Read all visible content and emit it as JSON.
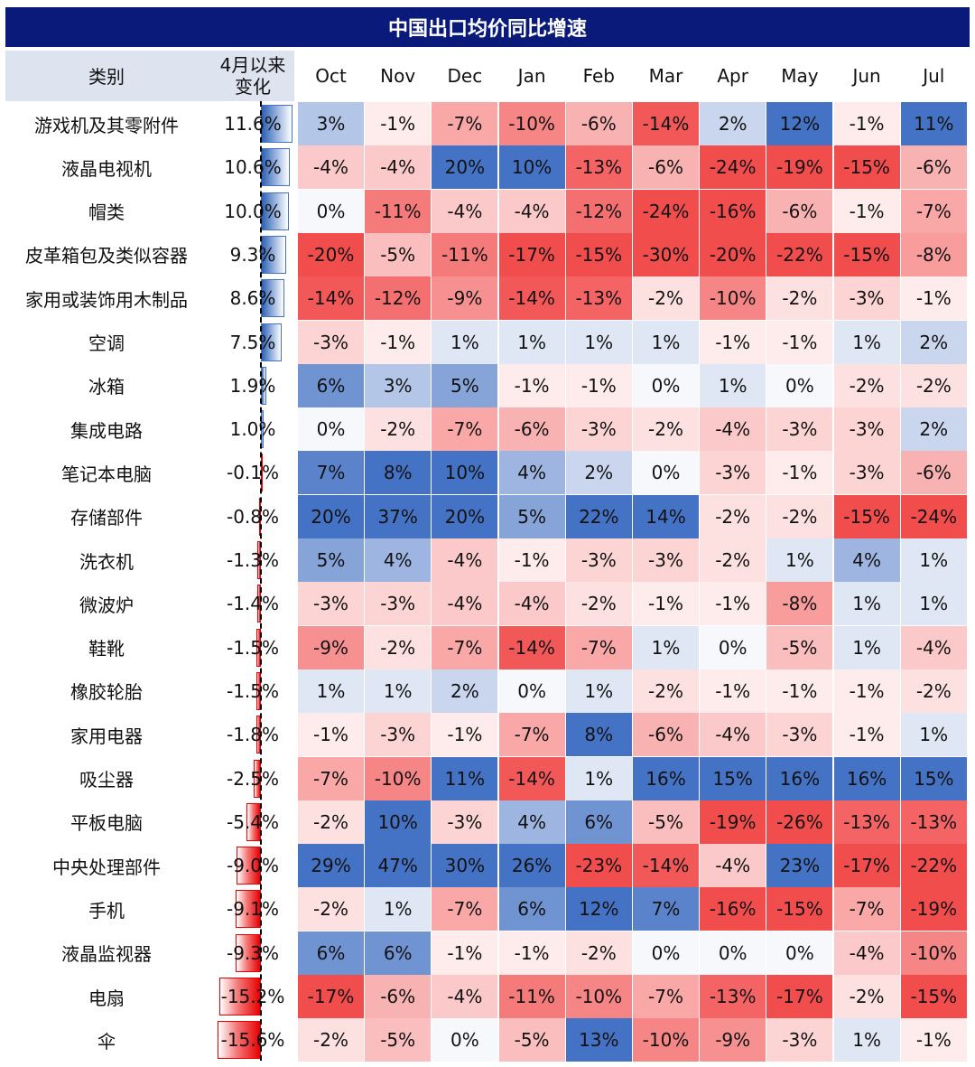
{
  "title": "中国出口均价同比增速",
  "headers": {
    "category": "类别",
    "change_line1": "4月以来",
    "change_line2": "变化",
    "months": [
      "Oct",
      "Nov",
      "Dec",
      "Jan",
      "Feb",
      "Mar",
      "Apr",
      "May",
      "Jun",
      "Jul"
    ]
  },
  "chart_data": {
    "type": "heatmap",
    "title": "中国出口均价同比增速",
    "columns": [
      "Oct",
      "Nov",
      "Dec",
      "Jan",
      "Feb",
      "Mar",
      "Apr",
      "May",
      "Jun",
      "Jul"
    ],
    "colors": {
      "positive": "#4472c4",
      "negative": "#f24d4d",
      "title_bg": "#0a1a7a",
      "header_bg": "#dde3ef"
    },
    "rows": [
      {
        "category": "游戏机及其零附件",
        "change_label": "11.6%",
        "change": 11.6,
        "values": [
          3,
          -1,
          -7,
          -10,
          -6,
          -14,
          2,
          12,
          -1,
          11
        ]
      },
      {
        "category": "液晶电视机",
        "change_label": "10.6%",
        "change": 10.6,
        "values": [
          -4,
          -4,
          20,
          10,
          -13,
          -6,
          -24,
          -19,
          -15,
          -6
        ]
      },
      {
        "category": "帽类",
        "change_label": "10.0%",
        "change": 10.0,
        "values": [
          0,
          -11,
          -4,
          -4,
          -12,
          -24,
          -16,
          -6,
          -1,
          -7
        ]
      },
      {
        "category": "皮革箱包及类似容器",
        "change_label": "9.3%",
        "change": 9.3,
        "values": [
          -20,
          -5,
          -11,
          -17,
          -15,
          -30,
          -20,
          -22,
          -15,
          -8
        ]
      },
      {
        "category": "家用或装饰用木制品",
        "change_label": "8.6%",
        "change": 8.6,
        "values": [
          -14,
          -12,
          -9,
          -14,
          -13,
          -2,
          -10,
          -2,
          -3,
          -1
        ]
      },
      {
        "category": "空调",
        "change_label": "7.5%",
        "change": 7.5,
        "values": [
          -3,
          -1,
          1,
          1,
          1,
          1,
          -1,
          -1,
          1,
          2
        ]
      },
      {
        "category": "冰箱",
        "change_label": "1.9%",
        "change": 1.9,
        "values": [
          6,
          3,
          5,
          -1,
          -1,
          0,
          1,
          0,
          -2,
          -2
        ]
      },
      {
        "category": "集成电路",
        "change_label": "1.0%",
        "change": 1.0,
        "values": [
          0,
          -2,
          -7,
          -6,
          -3,
          -2,
          -4,
          -3,
          -3,
          2
        ]
      },
      {
        "category": "笔记本电脑",
        "change_label": "-0.1%",
        "change": -0.1,
        "values": [
          7,
          8,
          10,
          4,
          2,
          0,
          -3,
          -1,
          -3,
          -6
        ]
      },
      {
        "category": "存储部件",
        "change_label": "-0.8%",
        "change": -0.8,
        "values": [
          20,
          37,
          20,
          5,
          22,
          14,
          -2,
          -2,
          -15,
          -24
        ]
      },
      {
        "category": "洗衣机",
        "change_label": "-1.3%",
        "change": -1.3,
        "values": [
          5,
          4,
          -4,
          -1,
          -3,
          -3,
          -2,
          1,
          4,
          1
        ]
      },
      {
        "category": "微波炉",
        "change_label": "-1.4%",
        "change": -1.4,
        "values": [
          -3,
          -3,
          -4,
          -4,
          -2,
          -1,
          -1,
          -8,
          1,
          1
        ]
      },
      {
        "category": "鞋靴",
        "change_label": "-1.5%",
        "change": -1.5,
        "values": [
          -9,
          -2,
          -7,
          -14,
          -7,
          1,
          0,
          -5,
          1,
          -4
        ]
      },
      {
        "category": "橡胶轮胎",
        "change_label": "-1.5%",
        "change": -1.5,
        "values": [
          1,
          1,
          2,
          0,
          1,
          -2,
          -1,
          -1,
          -1,
          -2
        ]
      },
      {
        "category": "家用电器",
        "change_label": "-1.8%",
        "change": -1.8,
        "values": [
          -1,
          -3,
          -1,
          -7,
          8,
          -6,
          -4,
          -3,
          -1,
          1
        ]
      },
      {
        "category": "吸尘器",
        "change_label": "-2.5%",
        "change": -2.5,
        "values": [
          -7,
          -10,
          11,
          -14,
          1,
          16,
          15,
          16,
          16,
          15
        ]
      },
      {
        "category": "平板电脑",
        "change_label": "-5.4%",
        "change": -5.4,
        "values": [
          -2,
          10,
          -3,
          4,
          6,
          -5,
          -19,
          -26,
          -13,
          -13
        ]
      },
      {
        "category": "中央处理部件",
        "change_label": "-9.0%",
        "change": -9.0,
        "values": [
          29,
          47,
          30,
          26,
          -23,
          -14,
          -4,
          23,
          -17,
          -22
        ]
      },
      {
        "category": "手机",
        "change_label": "-9.1%",
        "change": -9.1,
        "values": [
          -2,
          1,
          -7,
          6,
          12,
          7,
          -16,
          -15,
          -7,
          -19
        ]
      },
      {
        "category": "液晶监视器",
        "change_label": "-9.3%",
        "change": -9.3,
        "values": [
          6,
          6,
          -1,
          -1,
          -2,
          0,
          0,
          0,
          -4,
          -10
        ]
      },
      {
        "category": "电扇",
        "change_label": "-15.2%",
        "change": -15.2,
        "values": [
          -17,
          -6,
          -4,
          -11,
          -10,
          -7,
          -13,
          -17,
          -2,
          -15
        ]
      },
      {
        "category": "伞",
        "change_label": "-15.6%",
        "change": -15.6,
        "values": [
          -2,
          -5,
          0,
          -5,
          13,
          -10,
          -9,
          -3,
          1,
          -1
        ]
      }
    ]
  }
}
